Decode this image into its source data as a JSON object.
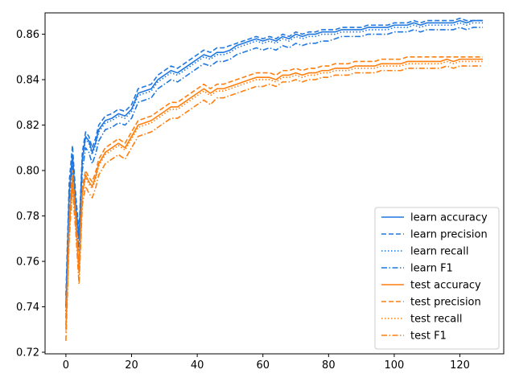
{
  "chart_data": {
    "type": "line",
    "title": "",
    "xlabel": "",
    "ylabel": "",
    "xlim": [
      -6.35,
      133.35
    ],
    "ylim": [
      0.7193,
      0.8694
    ],
    "x_ticks": [
      0,
      20,
      40,
      60,
      80,
      100,
      120
    ],
    "y_ticks": [
      0.72,
      0.74,
      0.76,
      0.78,
      0.8,
      0.82,
      0.84,
      0.86
    ],
    "y_tick_labels": [
      "0.72",
      "0.74",
      "0.76",
      "0.78",
      "0.80",
      "0.82",
      "0.84",
      "0.86"
    ],
    "grid": false,
    "legend_position": "lower-right",
    "x": [
      0,
      1,
      2,
      3,
      4,
      5,
      6,
      7,
      8,
      9,
      10,
      12,
      14,
      16,
      18,
      20,
      22,
      24,
      26,
      28,
      30,
      32,
      34,
      36,
      38,
      40,
      42,
      44,
      46,
      48,
      50,
      52,
      54,
      56,
      58,
      60,
      62,
      64,
      66,
      68,
      70,
      72,
      74,
      76,
      78,
      80,
      82,
      84,
      86,
      88,
      90,
      92,
      94,
      96,
      98,
      100,
      102,
      104,
      106,
      108,
      110,
      112,
      114,
      116,
      118,
      120,
      122,
      124,
      126,
      127
    ],
    "series": [
      {
        "name": "learn accuracy",
        "color": "#1f77e0",
        "dash": "solid",
        "values": [
          0.74,
          0.79,
          0.807,
          0.785,
          0.77,
          0.805,
          0.815,
          0.813,
          0.808,
          0.812,
          0.818,
          0.822,
          0.823,
          0.825,
          0.824,
          0.827,
          0.834,
          0.835,
          0.836,
          0.84,
          0.842,
          0.844,
          0.843,
          0.845,
          0.847,
          0.849,
          0.851,
          0.85,
          0.852,
          0.852,
          0.853,
          0.855,
          0.856,
          0.857,
          0.858,
          0.857,
          0.858,
          0.857,
          0.859,
          0.858,
          0.86,
          0.859,
          0.86,
          0.86,
          0.861,
          0.861,
          0.861,
          0.862,
          0.862,
          0.862,
          0.862,
          0.863,
          0.863,
          0.863,
          0.863,
          0.864,
          0.864,
          0.864,
          0.865,
          0.864,
          0.865,
          0.865,
          0.865,
          0.865,
          0.865,
          0.866,
          0.865,
          0.866,
          0.866,
          0.866
        ]
      },
      {
        "name": "learn precision",
        "color": "#1f77e0",
        "dash": "dashed",
        "values": [
          0.745,
          0.795,
          0.811,
          0.789,
          0.773,
          0.808,
          0.817,
          0.815,
          0.81,
          0.814,
          0.82,
          0.824,
          0.825,
          0.827,
          0.826,
          0.829,
          0.836,
          0.837,
          0.838,
          0.842,
          0.844,
          0.846,
          0.845,
          0.847,
          0.849,
          0.851,
          0.853,
          0.852,
          0.854,
          0.854,
          0.855,
          0.856,
          0.857,
          0.858,
          0.859,
          0.858,
          0.859,
          0.858,
          0.86,
          0.859,
          0.861,
          0.86,
          0.861,
          0.861,
          0.862,
          0.862,
          0.862,
          0.863,
          0.863,
          0.863,
          0.863,
          0.864,
          0.864,
          0.864,
          0.864,
          0.865,
          0.865,
          0.865,
          0.866,
          0.865,
          0.866,
          0.866,
          0.866,
          0.866,
          0.866,
          0.867,
          0.866,
          0.866,
          0.866,
          0.866
        ]
      },
      {
        "name": "learn recall",
        "color": "#1f77e0",
        "dash": "dotted",
        "values": [
          0.738,
          0.789,
          0.806,
          0.784,
          0.769,
          0.804,
          0.814,
          0.812,
          0.807,
          0.811,
          0.817,
          0.821,
          0.822,
          0.824,
          0.823,
          0.826,
          0.833,
          0.834,
          0.835,
          0.839,
          0.841,
          0.843,
          0.842,
          0.844,
          0.846,
          0.848,
          0.85,
          0.849,
          0.851,
          0.851,
          0.852,
          0.854,
          0.855,
          0.856,
          0.857,
          0.856,
          0.857,
          0.856,
          0.858,
          0.857,
          0.859,
          0.858,
          0.859,
          0.859,
          0.86,
          0.86,
          0.86,
          0.861,
          0.861,
          0.861,
          0.861,
          0.862,
          0.862,
          0.862,
          0.862,
          0.863,
          0.863,
          0.863,
          0.864,
          0.863,
          0.864,
          0.864,
          0.864,
          0.864,
          0.864,
          0.865,
          0.864,
          0.865,
          0.865,
          0.865
        ]
      },
      {
        "name": "learn F1",
        "color": "#1f77e0",
        "dash": "dashdot",
        "values": [
          0.735,
          0.785,
          0.802,
          0.78,
          0.765,
          0.8,
          0.81,
          0.808,
          0.803,
          0.807,
          0.813,
          0.818,
          0.819,
          0.821,
          0.82,
          0.823,
          0.83,
          0.831,
          0.832,
          0.836,
          0.838,
          0.84,
          0.839,
          0.841,
          0.843,
          0.845,
          0.847,
          0.846,
          0.848,
          0.848,
          0.849,
          0.851,
          0.852,
          0.853,
          0.854,
          0.853,
          0.854,
          0.853,
          0.855,
          0.854,
          0.856,
          0.855,
          0.856,
          0.856,
          0.857,
          0.857,
          0.858,
          0.859,
          0.859,
          0.859,
          0.859,
          0.86,
          0.86,
          0.86,
          0.86,
          0.861,
          0.861,
          0.861,
          0.862,
          0.861,
          0.862,
          0.862,
          0.862,
          0.862,
          0.862,
          0.863,
          0.862,
          0.863,
          0.863,
          0.863
        ]
      },
      {
        "name": "test accuracy",
        "color": "#ff7f0e",
        "dash": "solid",
        "values": [
          0.73,
          0.775,
          0.797,
          0.778,
          0.755,
          0.79,
          0.798,
          0.795,
          0.793,
          0.797,
          0.803,
          0.808,
          0.81,
          0.812,
          0.81,
          0.815,
          0.82,
          0.821,
          0.822,
          0.824,
          0.826,
          0.828,
          0.828,
          0.83,
          0.832,
          0.834,
          0.836,
          0.834,
          0.836,
          0.836,
          0.837,
          0.838,
          0.839,
          0.84,
          0.841,
          0.841,
          0.841,
          0.84,
          0.842,
          0.842,
          0.843,
          0.842,
          0.843,
          0.843,
          0.844,
          0.844,
          0.845,
          0.845,
          0.845,
          0.846,
          0.846,
          0.846,
          0.846,
          0.847,
          0.847,
          0.847,
          0.847,
          0.848,
          0.848,
          0.848,
          0.848,
          0.848,
          0.848,
          0.849,
          0.848,
          0.849,
          0.849,
          0.849,
          0.849,
          0.849
        ]
      },
      {
        "name": "test precision",
        "color": "#ff7f0e",
        "dash": "dashed",
        "values": [
          0.732,
          0.778,
          0.8,
          0.781,
          0.758,
          0.793,
          0.8,
          0.797,
          0.795,
          0.799,
          0.805,
          0.81,
          0.812,
          0.814,
          0.812,
          0.817,
          0.822,
          0.823,
          0.824,
          0.826,
          0.828,
          0.83,
          0.83,
          0.832,
          0.834,
          0.836,
          0.838,
          0.836,
          0.838,
          0.838,
          0.839,
          0.84,
          0.841,
          0.842,
          0.843,
          0.843,
          0.843,
          0.842,
          0.844,
          0.844,
          0.845,
          0.844,
          0.845,
          0.845,
          0.846,
          0.846,
          0.847,
          0.847,
          0.847,
          0.848,
          0.848,
          0.848,
          0.848,
          0.849,
          0.849,
          0.849,
          0.849,
          0.85,
          0.85,
          0.85,
          0.85,
          0.85,
          0.85,
          0.85,
          0.85,
          0.85,
          0.85,
          0.85,
          0.85,
          0.85
        ]
      },
      {
        "name": "test recall",
        "color": "#ff7f0e",
        "dash": "dotted",
        "values": [
          0.729,
          0.774,
          0.796,
          0.777,
          0.754,
          0.789,
          0.797,
          0.794,
          0.792,
          0.796,
          0.802,
          0.807,
          0.809,
          0.811,
          0.809,
          0.814,
          0.819,
          0.82,
          0.821,
          0.823,
          0.825,
          0.827,
          0.827,
          0.829,
          0.831,
          0.833,
          0.835,
          0.833,
          0.835,
          0.835,
          0.836,
          0.837,
          0.838,
          0.839,
          0.84,
          0.84,
          0.84,
          0.839,
          0.841,
          0.841,
          0.842,
          0.841,
          0.842,
          0.842,
          0.843,
          0.843,
          0.844,
          0.844,
          0.844,
          0.845,
          0.845,
          0.845,
          0.845,
          0.846,
          0.846,
          0.846,
          0.846,
          0.847,
          0.847,
          0.847,
          0.847,
          0.847,
          0.847,
          0.848,
          0.847,
          0.848,
          0.848,
          0.848,
          0.848,
          0.848
        ]
      },
      {
        "name": "test F1",
        "color": "#ff7f0e",
        "dash": "dashdot",
        "values": [
          0.725,
          0.77,
          0.792,
          0.773,
          0.75,
          0.785,
          0.793,
          0.79,
          0.788,
          0.792,
          0.798,
          0.803,
          0.805,
          0.807,
          0.805,
          0.81,
          0.815,
          0.816,
          0.817,
          0.819,
          0.821,
          0.823,
          0.823,
          0.825,
          0.827,
          0.829,
          0.831,
          0.829,
          0.832,
          0.832,
          0.833,
          0.834,
          0.835,
          0.836,
          0.837,
          0.837,
          0.838,
          0.837,
          0.839,
          0.839,
          0.84,
          0.839,
          0.84,
          0.84,
          0.841,
          0.841,
          0.842,
          0.842,
          0.842,
          0.843,
          0.843,
          0.843,
          0.843,
          0.844,
          0.844,
          0.844,
          0.844,
          0.845,
          0.845,
          0.845,
          0.845,
          0.845,
          0.845,
          0.846,
          0.845,
          0.846,
          0.846,
          0.846,
          0.846,
          0.846
        ]
      }
    ]
  }
}
